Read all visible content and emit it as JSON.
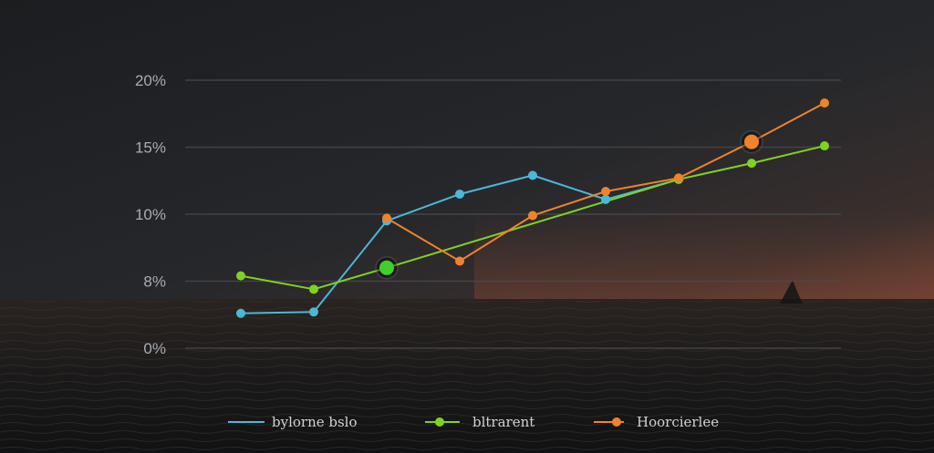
{
  "chart_data": {
    "type": "line",
    "y_tick_labels": [
      "0%",
      "8%",
      "10%",
      "15%",
      "20%"
    ],
    "ylim": [
      0,
      20
    ],
    "grid": "horizontal",
    "legend_position": "bottom",
    "x": [
      1,
      2,
      3,
      4,
      5,
      6,
      7,
      8,
      9
    ],
    "series": [
      {
        "name": "bylorne bslo",
        "color": "#4bb8d6",
        "x": [
          1,
          2,
          3,
          4,
          5,
          6,
          7
        ],
        "values": [
          2.6,
          2.7,
          9.5,
          11.5,
          12.9,
          11.1,
          12.6
        ]
      },
      {
        "name": "bltrarent",
        "color": "#7ed321",
        "x": [
          1,
          2,
          3,
          7,
          8,
          9
        ],
        "values": [
          5.4,
          4.4,
          6.0,
          12.6,
          13.8,
          15.1
        ],
        "lead_in": 5.5
      },
      {
        "name": "Hoorcierlee",
        "color": "#f0832a",
        "x": [
          3,
          4,
          5,
          6,
          7,
          8,
          9
        ],
        "values": [
          9.7,
          6.5,
          9.9,
          11.7,
          12.7,
          15.4,
          18.3
        ]
      }
    ],
    "highlights": [
      {
        "series": 1,
        "index": 2,
        "color": "#3ed12a"
      },
      {
        "series": 2,
        "index": 5,
        "color": "#f0832a"
      }
    ]
  }
}
